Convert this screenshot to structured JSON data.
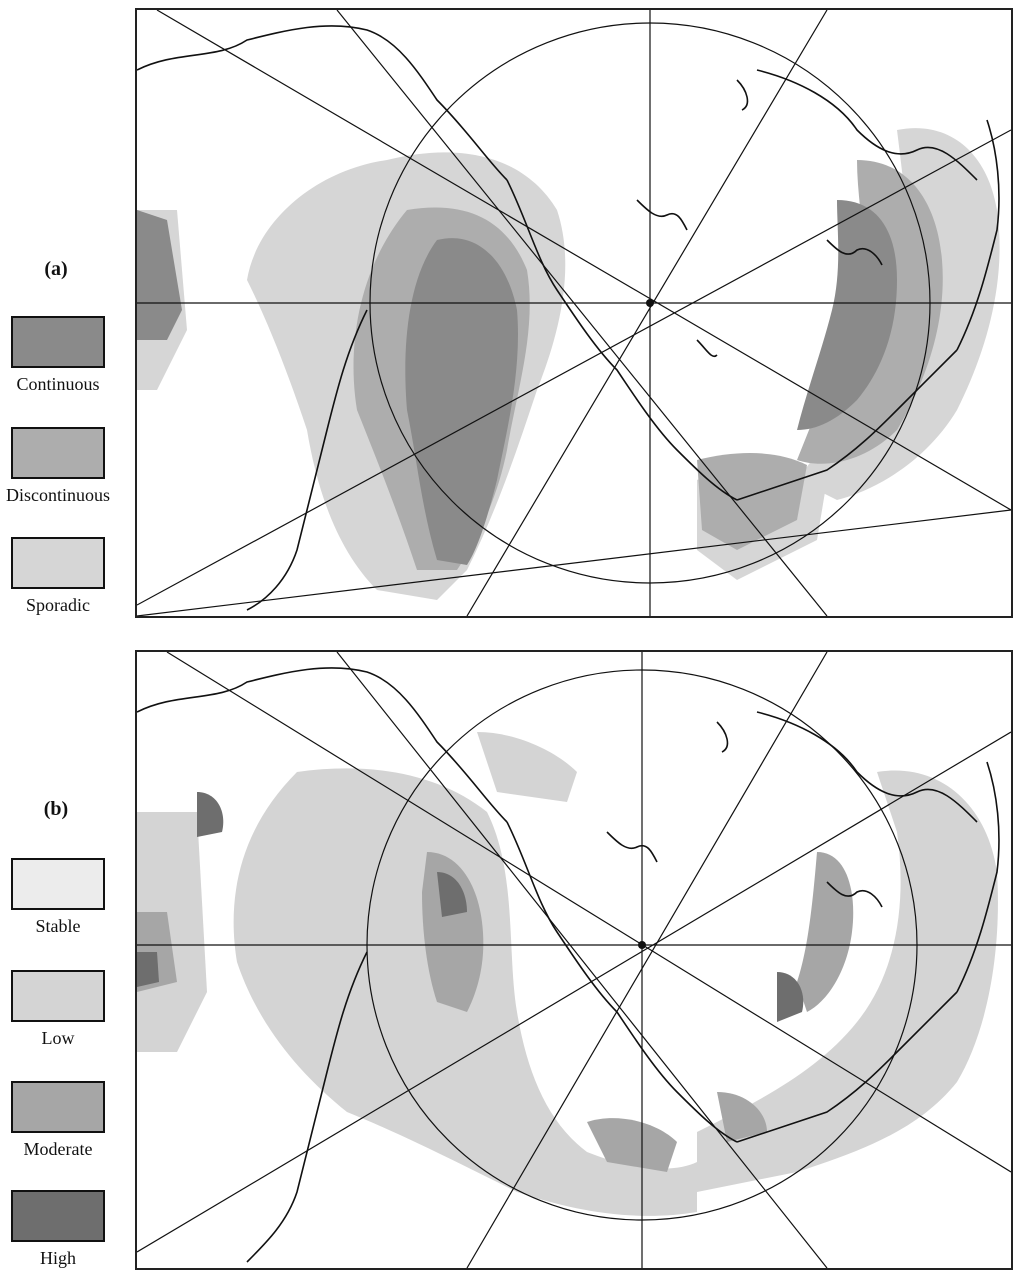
{
  "panel_a": {
    "label": "(a)",
    "legend": [
      {
        "label": "Continuous",
        "color": "#8a8a8a"
      },
      {
        "label": "Discontinuous",
        "color": "#adadad"
      },
      {
        "label": "Sporadic",
        "color": "#d6d6d6"
      }
    ]
  },
  "panel_b": {
    "label": "(b)",
    "legend": [
      {
        "label": "Stable",
        "color": "#ececec"
      },
      {
        "label": "Low",
        "color": "#d4d4d4"
      },
      {
        "label": "Moderate",
        "color": "#a6a6a6"
      },
      {
        "label": "High",
        "color": "#6e6e6e"
      }
    ]
  }
}
